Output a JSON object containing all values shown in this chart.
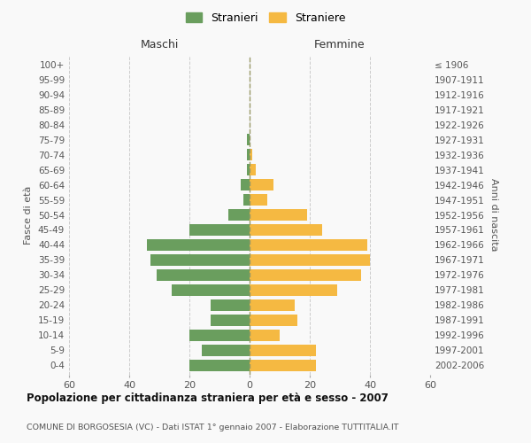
{
  "age_groups": [
    "0-4",
    "5-9",
    "10-14",
    "15-19",
    "20-24",
    "25-29",
    "30-34",
    "35-39",
    "40-44",
    "45-49",
    "50-54",
    "55-59",
    "60-64",
    "65-69",
    "70-74",
    "75-79",
    "80-84",
    "85-89",
    "90-94",
    "95-99",
    "100+"
  ],
  "birth_years": [
    "2002-2006",
    "1997-2001",
    "1992-1996",
    "1987-1991",
    "1982-1986",
    "1977-1981",
    "1972-1976",
    "1967-1971",
    "1962-1966",
    "1957-1961",
    "1952-1956",
    "1947-1951",
    "1942-1946",
    "1937-1941",
    "1932-1936",
    "1927-1931",
    "1922-1926",
    "1917-1921",
    "1912-1916",
    "1907-1911",
    "≤ 1906"
  ],
  "maschi": [
    20,
    16,
    20,
    13,
    13,
    26,
    31,
    33,
    34,
    20,
    7,
    2,
    3,
    1,
    1,
    1,
    0,
    0,
    0,
    0,
    0
  ],
  "femmine": [
    22,
    22,
    10,
    16,
    15,
    29,
    37,
    40,
    39,
    24,
    19,
    6,
    8,
    2,
    1,
    0,
    0,
    0,
    0,
    0,
    0
  ],
  "maschi_color": "#6a9e5e",
  "femmine_color": "#f5b942",
  "background_color": "#f9f9f9",
  "grid_color": "#cccccc",
  "title": "Popolazione per cittadinanza straniera per età e sesso - 2007",
  "subtitle": "COMUNE DI BORGOSESIA (VC) - Dati ISTAT 1° gennaio 2007 - Elaborazione TUTTITALIA.IT",
  "ylabel_left": "Fasce di età",
  "ylabel_right": "Anni di nascita",
  "xlabel_maschi": "Maschi",
  "xlabel_femmine": "Femmine",
  "legend_maschi": "Stranieri",
  "legend_femmine": "Straniere",
  "xlim": 60,
  "bar_height": 0.75
}
